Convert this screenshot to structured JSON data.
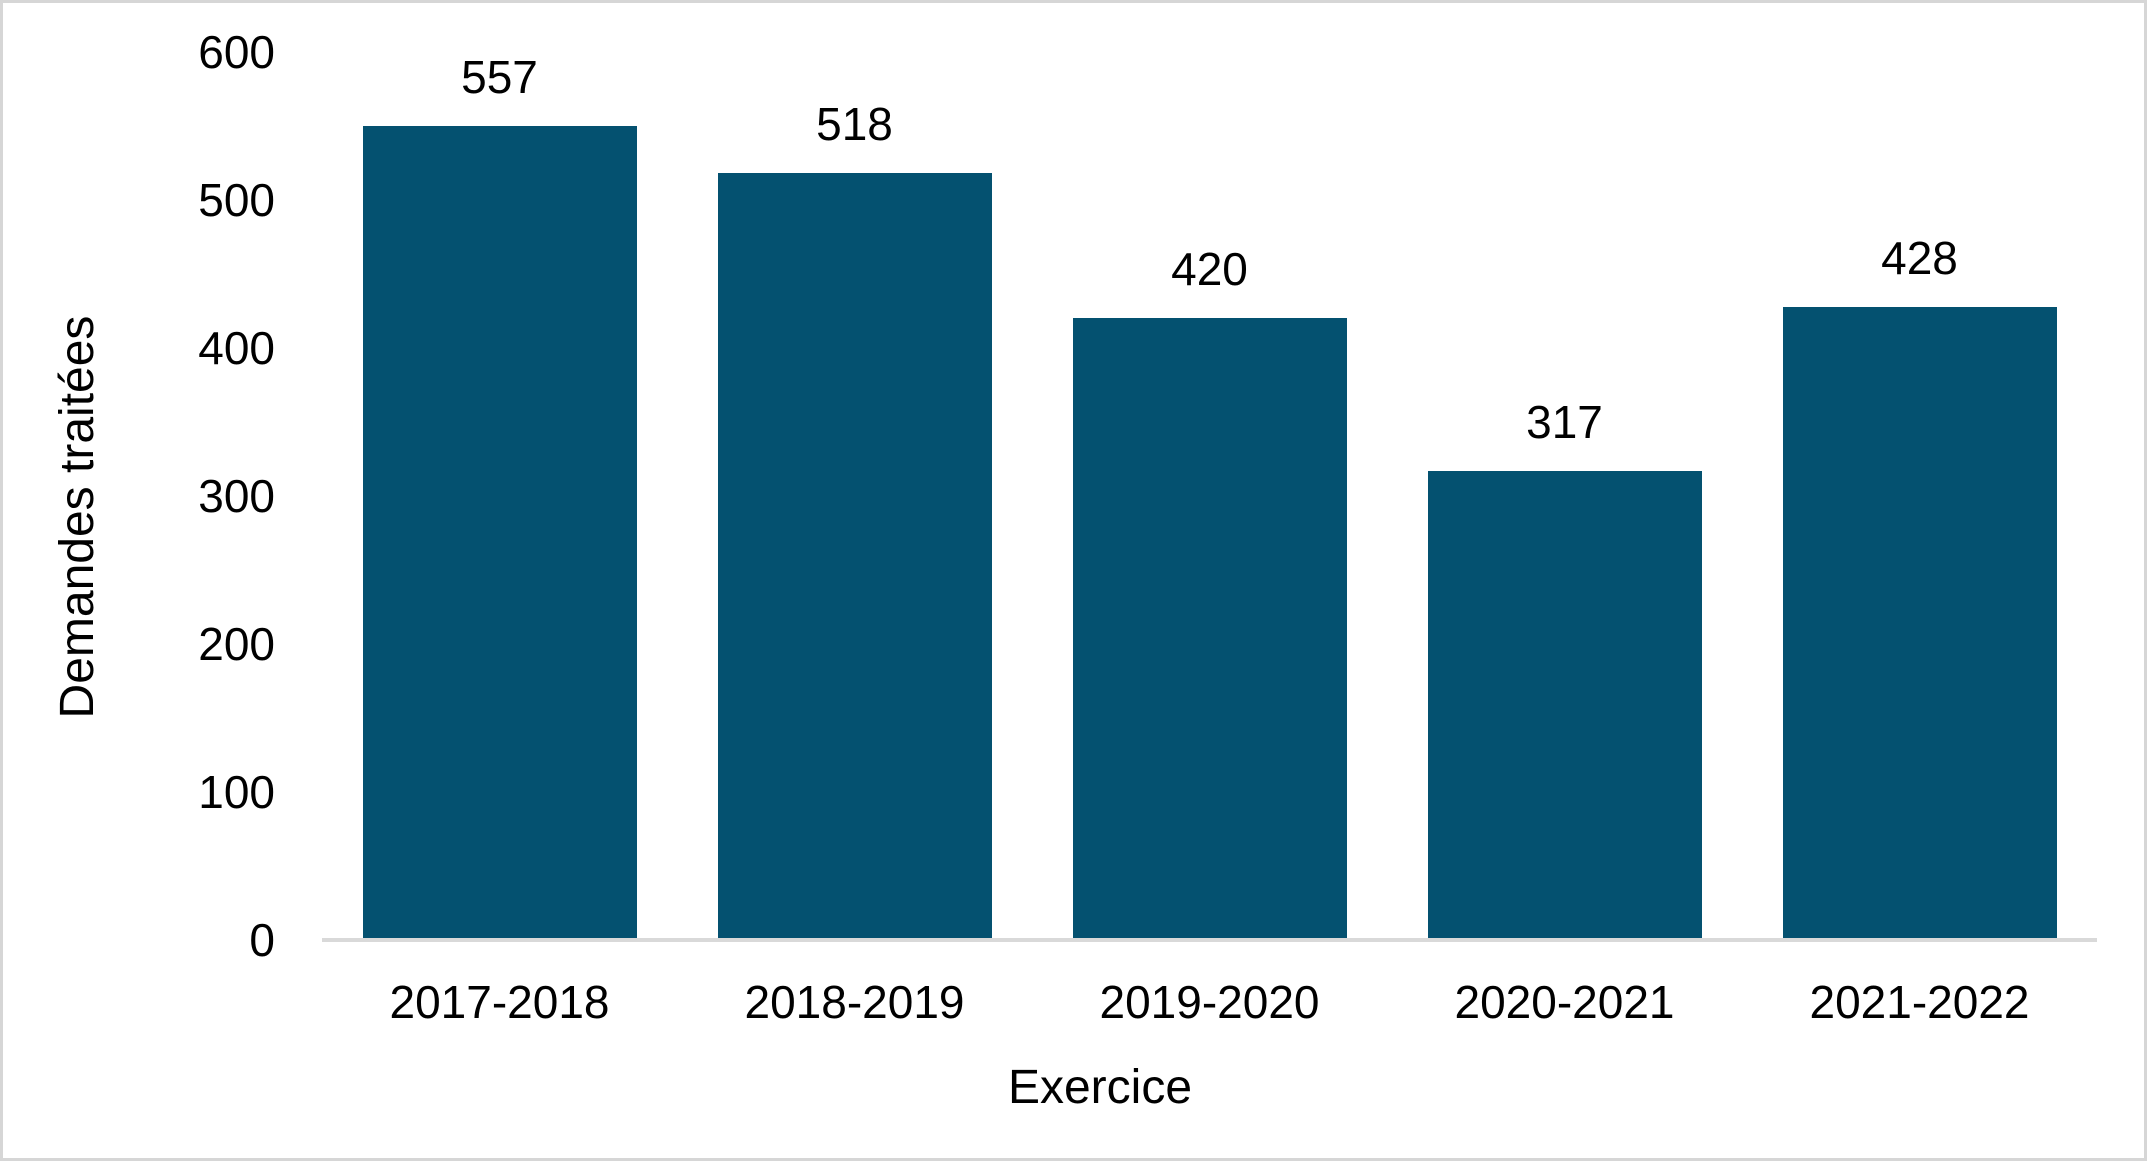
{
  "chart": {
    "colors": {
      "bar_fill": "#045170",
      "axis_line": "#d9d9d9",
      "border": "#d6d6d6",
      "background": "#ffffff",
      "text": "#000000"
    }
  },
  "chart_data": {
    "type": "bar",
    "title": "",
    "categories": [
      "2017-2018",
      "2018-2019",
      "2019-2020",
      "2020-2021",
      "2021-2022"
    ],
    "values": [
      557,
      518,
      420,
      317,
      428
    ],
    "data_labels": [
      "557",
      "518",
      "420",
      "317",
      "428"
    ],
    "xlabel": "Exercice",
    "ylabel": "Demandes traitées",
    "ylim": [
      0,
      600
    ],
    "yticks": [
      0,
      100,
      200,
      300,
      400,
      500,
      600
    ],
    "grid": false,
    "legend_position": "none",
    "data_labels_shown": true
  }
}
